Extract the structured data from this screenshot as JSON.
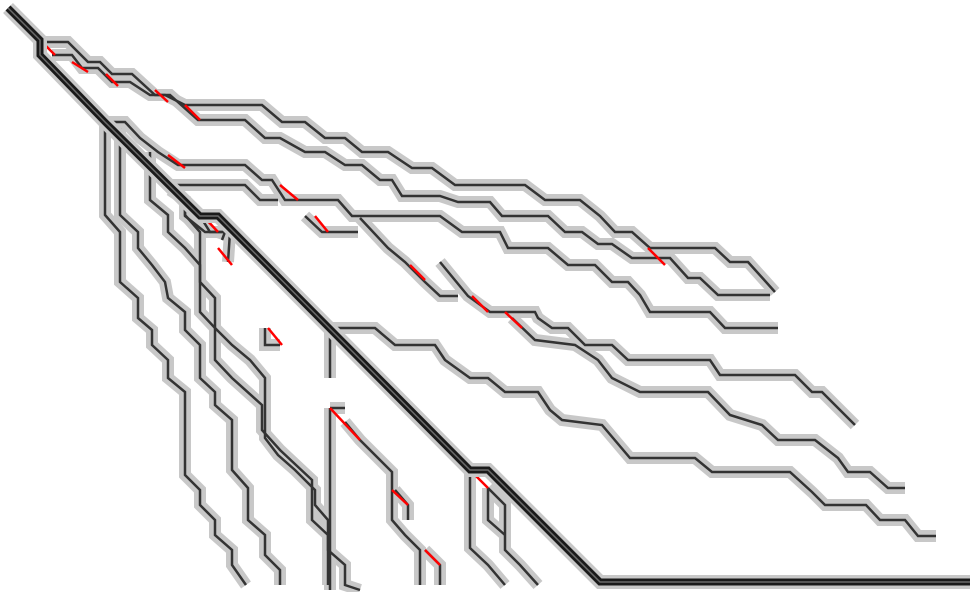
{
  "diagram": {
    "kind": "branching line tree",
    "background_color": "#ffffff",
    "colors": {
      "trunk": "#1a1a1a",
      "branch": "#333333",
      "halo": "#c8c8c8",
      "highlight": "#ff0000"
    }
  }
}
